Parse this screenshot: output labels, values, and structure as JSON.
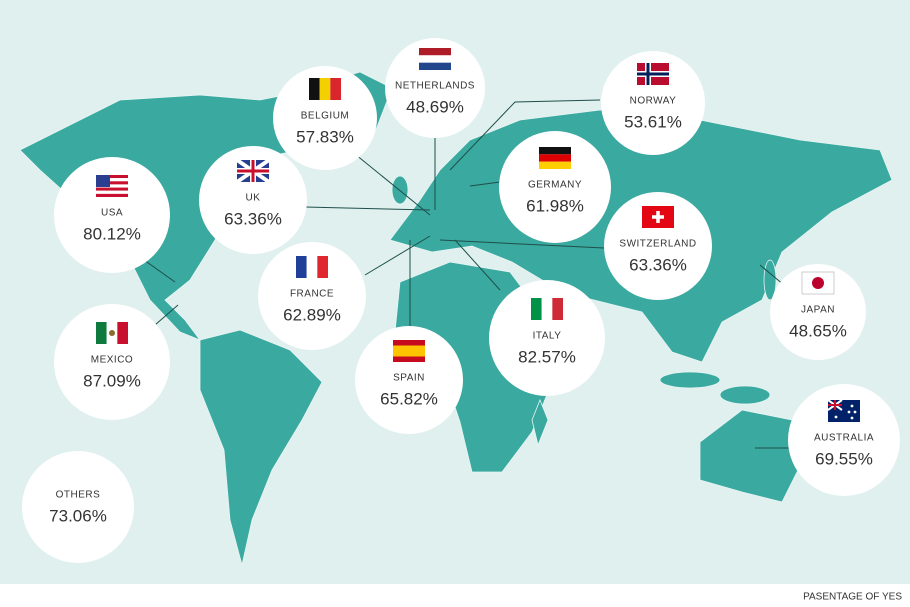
{
  "countries": [
    {
      "name": "USA",
      "value": "80.12%"
    },
    {
      "name": "MEXICO",
      "value": "87.09%"
    },
    {
      "name": "OTHERS",
      "value": "73.06%"
    },
    {
      "name": "UK",
      "value": "63.36%"
    },
    {
      "name": "BELGIUM",
      "value": "57.83%"
    },
    {
      "name": "NETHERLANDS",
      "value": "48.69%"
    },
    {
      "name": "FRANCE",
      "value": "62.89%"
    },
    {
      "name": "SPAIN",
      "value": "65.82%"
    },
    {
      "name": "GERMANY",
      "value": "61.98%"
    },
    {
      "name": "NORWAY",
      "value": "53.61%"
    },
    {
      "name": "SWITZERLAND",
      "value": "63.36%"
    },
    {
      "name": "ITALY",
      "value": "82.57%"
    },
    {
      "name": "JAPAN",
      "value": "48.65%"
    },
    {
      "name": "AUSTRALIA",
      "value": "69.55%"
    }
  ],
  "footer": "PASENTAGE OF YES"
}
